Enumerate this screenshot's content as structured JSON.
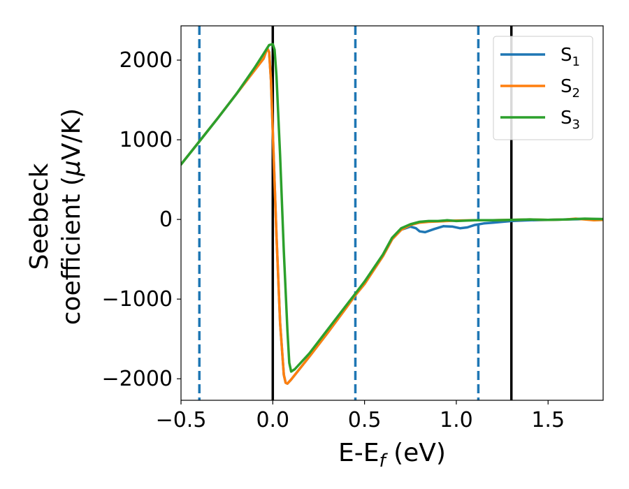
{
  "chart_data": {
    "type": "line",
    "xlabel": {
      "main": "E-E",
      "sub": "f",
      "unit": " (eV)"
    },
    "ylabel": {
      "line1": "Seebeck",
      "line2_text": "coefficient  (",
      "line2_mu": "μ",
      "line2_unit": "V/K)"
    },
    "xlim": [
      -0.5,
      1.8
    ],
    "ylim": [
      -2270,
      2430
    ],
    "xticks": [
      -0.5,
      0.0,
      0.5,
      1.0,
      1.5
    ],
    "xtick_labels": [
      "−0.5",
      "0.0",
      "0.5",
      "1.0",
      "1.5"
    ],
    "yticks": [
      -2000,
      -1000,
      0,
      1000,
      2000
    ],
    "ytick_labels": [
      "−2000",
      "−1000",
      "0",
      "1000",
      "2000"
    ],
    "grid": false,
    "legend_position": "top-right",
    "vlines_solid": {
      "color": "#000000",
      "x": [
        0.0,
        1.3
      ]
    },
    "vlines_dashed": {
      "color": "#1f77b4",
      "x": [
        -0.4,
        0.45,
        1.12
      ]
    },
    "series": [
      {
        "name": "S",
        "name_sub": "1",
        "color": "#1f77b4",
        "points": [
          [
            -0.5,
            690
          ],
          [
            -0.4,
            980
          ],
          [
            -0.3,
            1270
          ],
          [
            -0.2,
            1570
          ],
          [
            -0.1,
            1870
          ],
          [
            -0.05,
            2020
          ],
          [
            -0.03,
            2150
          ],
          [
            -0.02,
            2100
          ],
          [
            -0.01,
            1750
          ],
          [
            0.0,
            1100
          ],
          [
            0.02,
            -200
          ],
          [
            0.04,
            -1300
          ],
          [
            0.06,
            -1950
          ],
          [
            0.07,
            -2050
          ],
          [
            0.08,
            -2060
          ],
          [
            0.1,
            -2010
          ],
          [
            0.2,
            -1720
          ],
          [
            0.3,
            -1420
          ],
          [
            0.4,
            -1110
          ],
          [
            0.45,
            -950
          ],
          [
            0.5,
            -810
          ],
          [
            0.6,
            -460
          ],
          [
            0.65,
            -250
          ],
          [
            0.7,
            -130
          ],
          [
            0.75,
            -90
          ],
          [
            0.78,
            -110
          ],
          [
            0.8,
            -150
          ],
          [
            0.83,
            -160
          ],
          [
            0.88,
            -120
          ],
          [
            0.93,
            -85
          ],
          [
            0.98,
            -90
          ],
          [
            1.02,
            -110
          ],
          [
            1.06,
            -100
          ],
          [
            1.1,
            -70
          ],
          [
            1.15,
            -50
          ],
          [
            1.2,
            -40
          ],
          [
            1.3,
            -20
          ],
          [
            1.4,
            -10
          ],
          [
            1.5,
            -5
          ],
          [
            1.6,
            0
          ],
          [
            1.7,
            5
          ],
          [
            1.8,
            5
          ]
        ]
      },
      {
        "name": "S",
        "name_sub": "2",
        "color": "#ff7f0e",
        "points": [
          [
            -0.5,
            690
          ],
          [
            -0.4,
            980
          ],
          [
            -0.3,
            1270
          ],
          [
            -0.2,
            1570
          ],
          [
            -0.1,
            1870
          ],
          [
            -0.05,
            2020
          ],
          [
            -0.03,
            2150
          ],
          [
            -0.02,
            2100
          ],
          [
            -0.01,
            1750
          ],
          [
            0.0,
            1100
          ],
          [
            0.02,
            -200
          ],
          [
            0.04,
            -1300
          ],
          [
            0.06,
            -1950
          ],
          [
            0.07,
            -2050
          ],
          [
            0.08,
            -2060
          ],
          [
            0.1,
            -2010
          ],
          [
            0.2,
            -1720
          ],
          [
            0.3,
            -1420
          ],
          [
            0.4,
            -1110
          ],
          [
            0.45,
            -950
          ],
          [
            0.5,
            -810
          ],
          [
            0.6,
            -460
          ],
          [
            0.65,
            -250
          ],
          [
            0.7,
            -130
          ],
          [
            0.75,
            -70
          ],
          [
            0.8,
            -40
          ],
          [
            0.85,
            -30
          ],
          [
            0.9,
            -25
          ],
          [
            0.95,
            -20
          ],
          [
            1.0,
            -15
          ],
          [
            1.1,
            -10
          ],
          [
            1.2,
            -10
          ],
          [
            1.3,
            -5
          ],
          [
            1.4,
            0
          ],
          [
            1.5,
            -5
          ],
          [
            1.6,
            0
          ],
          [
            1.65,
            10
          ],
          [
            1.7,
            0
          ],
          [
            1.75,
            -10
          ],
          [
            1.8,
            -5
          ]
        ]
      },
      {
        "name": "S",
        "name_sub": "3",
        "color": "#2ca02c",
        "points": [
          [
            -0.5,
            690
          ],
          [
            -0.4,
            980
          ],
          [
            -0.3,
            1270
          ],
          [
            -0.2,
            1570
          ],
          [
            -0.1,
            1900
          ],
          [
            -0.05,
            2080
          ],
          [
            -0.02,
            2190
          ],
          [
            0.0,
            2200
          ],
          [
            0.01,
            2130
          ],
          [
            0.02,
            1800
          ],
          [
            0.04,
            800
          ],
          [
            0.06,
            -400
          ],
          [
            0.08,
            -1400
          ],
          [
            0.09,
            -1800
          ],
          [
            0.1,
            -1910
          ],
          [
            0.12,
            -1880
          ],
          [
            0.2,
            -1680
          ],
          [
            0.3,
            -1380
          ],
          [
            0.4,
            -1080
          ],
          [
            0.45,
            -930
          ],
          [
            0.5,
            -780
          ],
          [
            0.6,
            -440
          ],
          [
            0.65,
            -230
          ],
          [
            0.7,
            -110
          ],
          [
            0.75,
            -60
          ],
          [
            0.8,
            -30
          ],
          [
            0.85,
            -20
          ],
          [
            0.9,
            -20
          ],
          [
            0.95,
            -10
          ],
          [
            1.0,
            -20
          ],
          [
            1.1,
            -10
          ],
          [
            1.2,
            -10
          ],
          [
            1.3,
            -5
          ],
          [
            1.4,
            0
          ],
          [
            1.5,
            -5
          ],
          [
            1.6,
            0
          ],
          [
            1.7,
            10
          ],
          [
            1.8,
            5
          ]
        ]
      }
    ]
  }
}
